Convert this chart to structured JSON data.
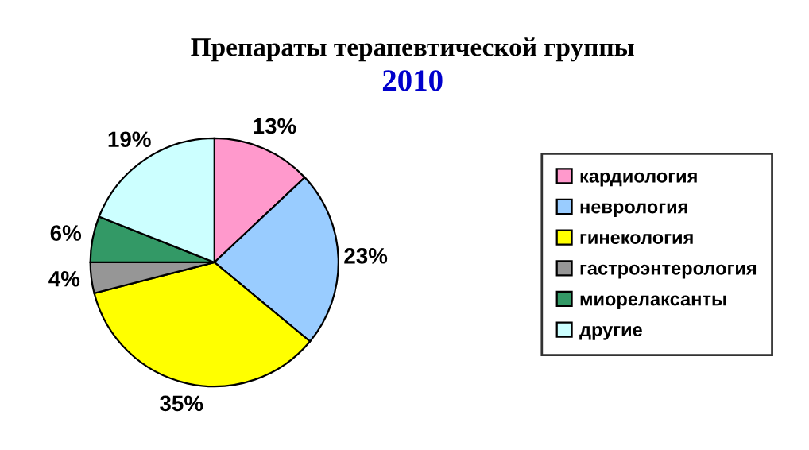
{
  "chart_data": {
    "type": "pie",
    "title": "Препараты терапевтической группы",
    "subtitle": "2010",
    "categories": [
      "кардиология",
      "неврология",
      "гинекология",
      "гастроэнтерология",
      "миорелаксанты",
      "другие"
    ],
    "values": [
      13,
      23,
      35,
      4,
      6,
      19
    ],
    "value_labels": [
      "13%",
      "23%",
      "35%",
      "4%",
      "6%",
      "19%"
    ],
    "colors": [
      "#ff99cc",
      "#99ccff",
      "#ffff00",
      "#969696",
      "#339966",
      "#ccffff"
    ],
    "legend": "right"
  }
}
